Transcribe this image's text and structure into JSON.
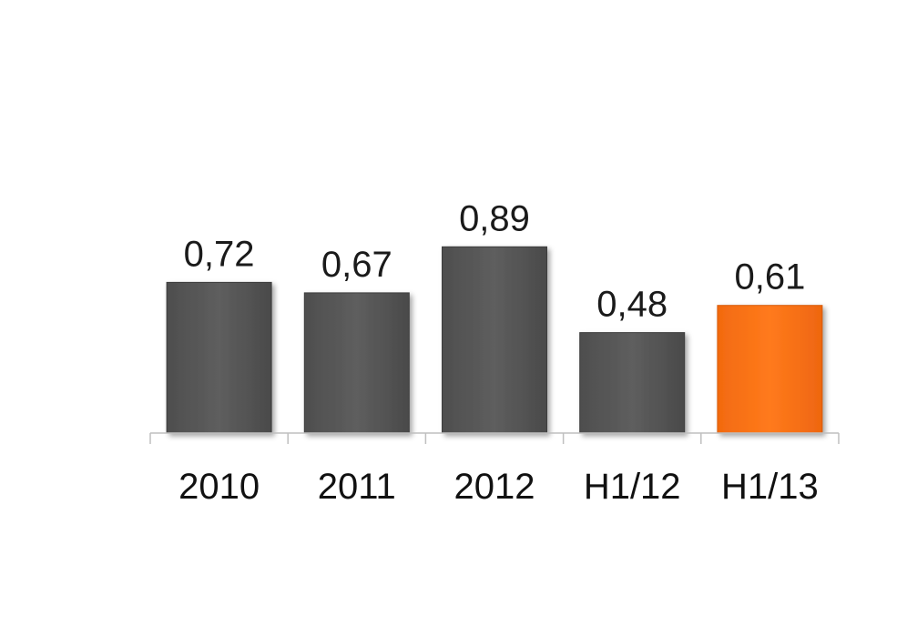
{
  "chart_data": {
    "type": "bar",
    "categories": [
      "2010",
      "2011",
      "2012",
      "H1/12",
      "H1/13"
    ],
    "values": [
      0.72,
      0.67,
      0.89,
      0.48,
      0.61
    ],
    "value_labels": [
      "0,72",
      "0,67",
      "0,89",
      "0,48",
      "0,61"
    ],
    "ylim": [
      0,
      1.6
    ],
    "grid": false,
    "legend": "none",
    "colors": {
      "default_bar": "#5a5a5a",
      "highlight_bar": "#ff7417",
      "axis": "#bfbfbf"
    },
    "highlight_index": 4
  }
}
